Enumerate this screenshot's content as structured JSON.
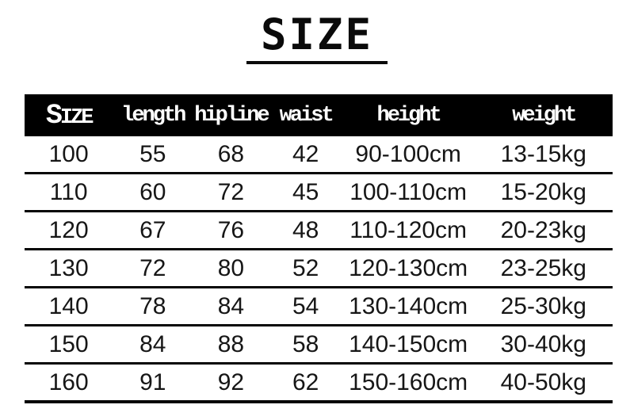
{
  "title": "SIZE",
  "chart_data": {
    "type": "table",
    "title": "SIZE",
    "columns": [
      "SIZE",
      "length",
      "hipline",
      "waist",
      "height",
      "weight"
    ],
    "rows": [
      [
        "100",
        "55",
        "68",
        "42",
        "90-100cm",
        "13-15kg"
      ],
      [
        "110",
        "60",
        "72",
        "45",
        "100-110cm",
        "15-20kg"
      ],
      [
        "120",
        "67",
        "76",
        "48",
        "110-120cm",
        "20-23kg"
      ],
      [
        "130",
        "72",
        "80",
        "52",
        "120-130cm",
        "23-25kg"
      ],
      [
        "140",
        "78",
        "84",
        "54",
        "130-140cm",
        "25-30kg"
      ],
      [
        "150",
        "84",
        "88",
        "58",
        "140-150cm",
        "30-40kg"
      ],
      [
        "160",
        "91",
        "92",
        "62",
        "150-160cm",
        "40-50kg"
      ]
    ],
    "layout": {
      "header_style": "inverted-black-bar",
      "row_separators": "horizontal-lines-only",
      "grid": "no-vertical-lines"
    },
    "colors": {
      "background": "#ffffff",
      "header_bg": "#000000",
      "header_text": "#ffffff",
      "body_text": "#161616",
      "line": "#050505"
    }
  }
}
